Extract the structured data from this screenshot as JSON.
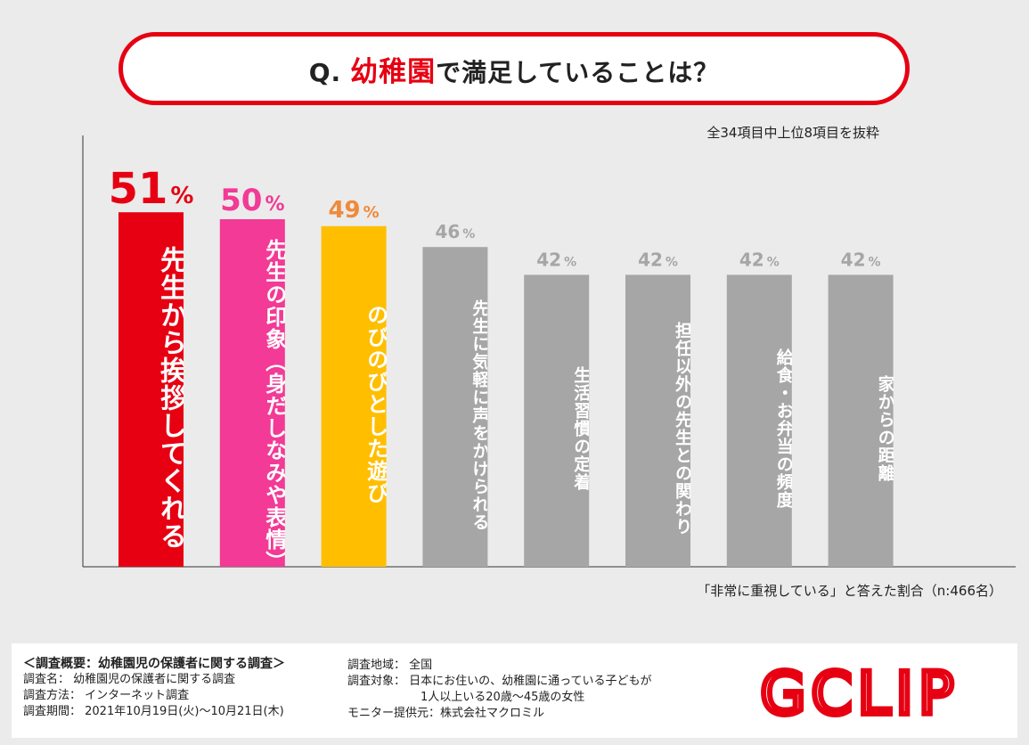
{
  "title": {
    "prefix": "Q.",
    "keyword": "幼稚園",
    "rest": "で満足していることは？"
  },
  "note": "全34項目中上位8項目を抜粋",
  "footnote": "「非常に重視している」と答えた割合（n:466名）",
  "chart_data": {
    "type": "bar",
    "categories": [
      "先生から挨拶してくれる",
      "先生の印象（身だしなみや表情）",
      "のびのびとした遊び",
      "先生に気軽に声をかけられる",
      "生活習慣の定着",
      "担任以外の先生との関わり",
      "給食・お弁当の頻度",
      "家からの距離"
    ],
    "values": [
      51,
      50,
      49,
      46,
      42,
      42,
      42,
      42
    ],
    "value_suffix": "%",
    "bar_colors": [
      "#e60012",
      "#f23a96",
      "#ffbe00",
      "#a6a6a6",
      "#a6a6a6",
      "#a6a6a6",
      "#a6a6a6",
      "#a6a6a6"
    ],
    "label_colors": [
      "#e60012",
      "#f23a96",
      "#ef8a3b",
      "#a6a6a6",
      "#a6a6a6",
      "#a6a6a6",
      "#a6a6a6",
      "#a6a6a6"
    ],
    "ylim": [
      0,
      60
    ],
    "xlabel": "",
    "ylabel": ""
  },
  "survey": {
    "heading": "＜調査概要：幼稚園児の保護者に関する調査＞",
    "name": "調査名：  幼稚園児の保護者に関する調査",
    "method": "調査方法：  インターネット調査",
    "period": "調査期間：  2021年10月19日(火)〜10月21日(木)",
    "region": "調査地域：  全国",
    "target_line1": "調査対象：  日本にお住いの、幼稚園に通っている子どもが",
    "target_line2": "1人以上いる20歳〜45歳の女性",
    "provider": "モニター提供元：株式会社マクロミル"
  },
  "logo": {
    "text": "GCLIP",
    "color": "#e60012"
  }
}
